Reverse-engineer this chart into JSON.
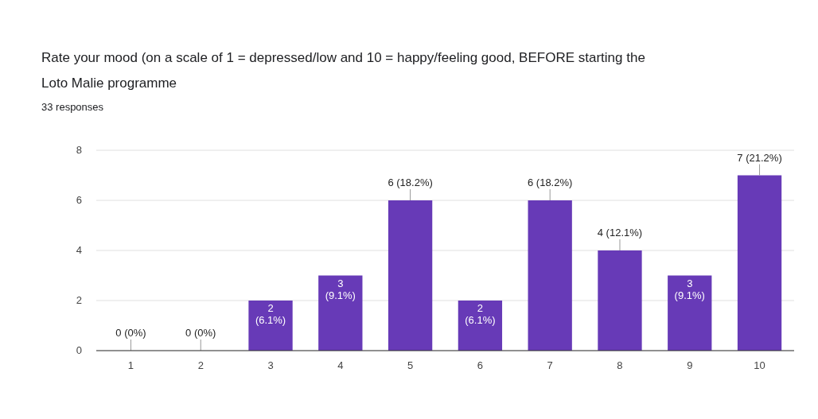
{
  "chart_data": {
    "type": "bar",
    "title": "Rate your mood (on a scale of 1 = depressed/low and 10 = happy/feeling good, BEFORE starting the Loto Malie programme",
    "subtitle": "33 responses",
    "categories": [
      "1",
      "2",
      "3",
      "4",
      "5",
      "6",
      "7",
      "8",
      "9",
      "10"
    ],
    "values": [
      0,
      0,
      2,
      3,
      6,
      2,
      6,
      4,
      3,
      7
    ],
    "value_labels": [
      "0 (0%)",
      "0 (0%)",
      "2 (6.1%)",
      "3 (9.1%)",
      "6 (18.2%)",
      "2 (6.1%)",
      "6 (18.2%)",
      "4 (12.1%)",
      "3 (9.1%)",
      "7 (21.2%)"
    ],
    "color": "#673ab7",
    "ylim": [
      0,
      8
    ],
    "yticks": [
      0,
      2,
      4,
      6,
      8
    ],
    "grid": "y"
  }
}
